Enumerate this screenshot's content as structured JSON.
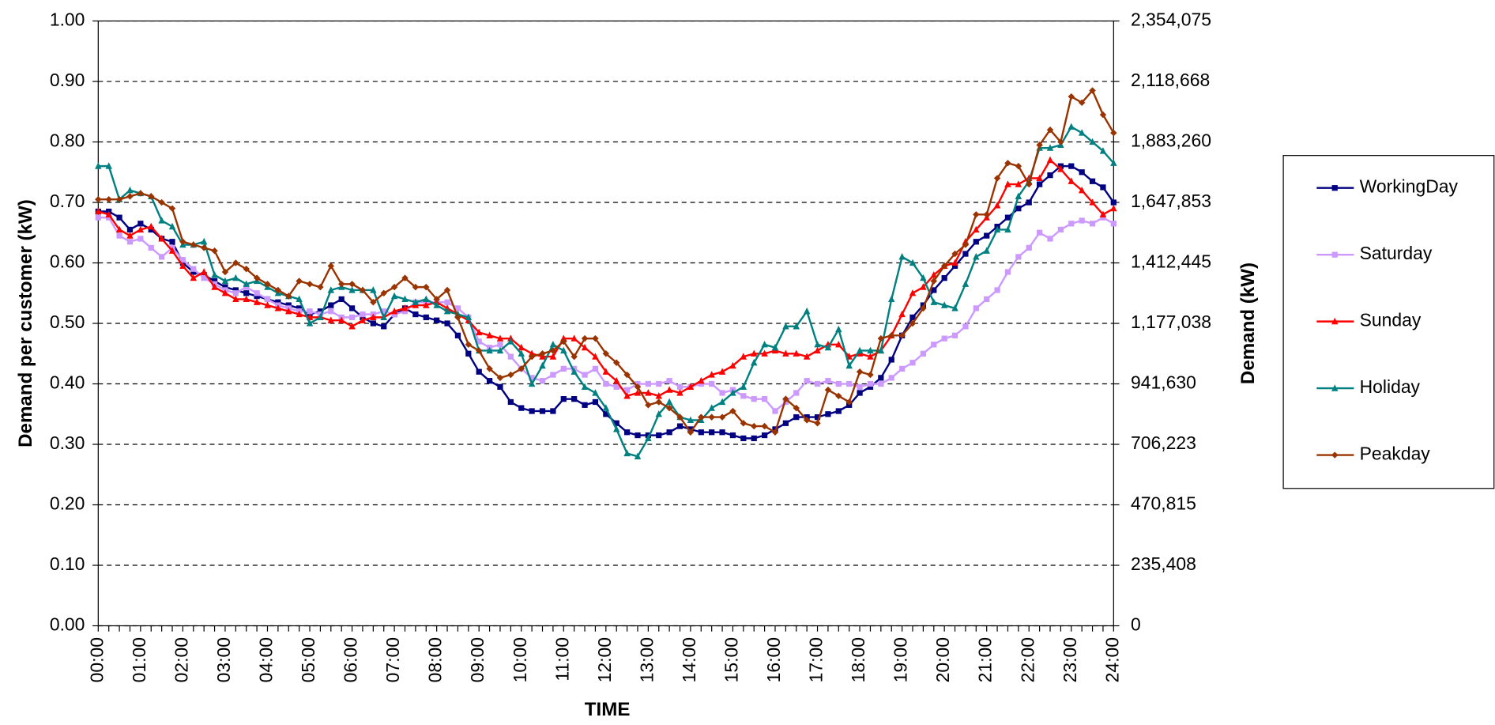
{
  "chart_data": {
    "type": "line",
    "xlabel": "TIME",
    "ylabel": "Demand per customer (kW)",
    "y2label": "Demand (kW)",
    "categories": [
      "00:00",
      null,
      null,
      null,
      "01:00",
      null,
      null,
      null,
      "02:00",
      null,
      null,
      null,
      "03:00",
      null,
      null,
      null,
      "04:00",
      null,
      null,
      null,
      "05:00",
      null,
      null,
      null,
      "06:00",
      null,
      null,
      null,
      "07:00",
      null,
      null,
      null,
      "08:00",
      null,
      null,
      null,
      "09:00",
      null,
      null,
      null,
      "10:00",
      null,
      null,
      null,
      "11:00",
      null,
      null,
      null,
      "12:00",
      null,
      null,
      null,
      "13:00",
      null,
      null,
      null,
      "14:00",
      null,
      null,
      null,
      "15:00",
      null,
      null,
      null,
      "16:00",
      null,
      null,
      null,
      "17:00",
      null,
      null,
      null,
      "18:00",
      null,
      null,
      null,
      "19:00",
      null,
      null,
      null,
      "20:00",
      null,
      null,
      null,
      "21:00",
      null,
      null,
      null,
      "22:00",
      null,
      null,
      null,
      "23:00",
      null,
      null,
      null,
      "24:00"
    ],
    "ylim": [
      0,
      1
    ],
    "yticks": [
      {
        "value": 0,
        "label": "0.00"
      },
      {
        "value": 0.1,
        "label": "0.10"
      },
      {
        "value": 0.2,
        "label": "0.20"
      },
      {
        "value": 0.3,
        "label": "0.30"
      },
      {
        "value": 0.4,
        "label": "0.40"
      },
      {
        "value": 0.5,
        "label": "0.50"
      },
      {
        "value": 0.6,
        "label": "0.60"
      },
      {
        "value": 0.7,
        "label": "0.70"
      },
      {
        "value": 0.8,
        "label": "0.80"
      },
      {
        "value": 0.9,
        "label": "0.90"
      },
      {
        "value": 1,
        "label": "1.00"
      }
    ],
    "y2lim": [
      0,
      2354075
    ],
    "y2ticks": [
      0,
      {
        "value": 235408,
        "label": "235,408"
      },
      {
        "value": 470815,
        "label": "470,815"
      },
      {
        "value": 706223,
        "label": "706,223"
      },
      {
        "value": 941630,
        "label": "941,630"
      },
      {
        "value": 1177038,
        "label": "1,177,038"
      },
      {
        "value": 1412445,
        "label": "1,412,445"
      },
      {
        "value": 1647853,
        "label": "1,647,853"
      },
      {
        "value": 1883260,
        "label": "1,883,260"
      },
      {
        "value": 2118668,
        "label": "2,118,668"
      },
      {
        "value": 2354075,
        "label": "2,354,075"
      }
    ],
    "grid": true,
    "legend": "right",
    "series": [
      {
        "name": "WorkingDay",
        "color": "#000080",
        "marker": "square",
        "values": [
          0.685,
          0.685,
          0.675,
          0.655,
          0.665,
          0.655,
          0.64,
          0.635,
          0.6,
          0.585,
          0.58,
          0.57,
          0.56,
          0.555,
          0.55,
          0.545,
          0.54,
          0.535,
          0.53,
          0.525,
          0.515,
          0.52,
          0.53,
          0.54,
          0.525,
          0.51,
          0.5,
          0.495,
          0.515,
          0.525,
          0.515,
          0.51,
          0.505,
          0.5,
          0.48,
          0.45,
          0.42,
          0.405,
          0.395,
          0.37,
          0.36,
          0.355,
          0.355,
          0.355,
          0.375,
          0.375,
          0.365,
          0.37,
          0.35,
          0.335,
          0.32,
          0.315,
          0.315,
          0.315,
          0.32,
          0.33,
          0.325,
          0.32,
          0.32,
          0.32,
          0.315,
          0.31,
          0.31,
          0.315,
          0.325,
          0.335,
          0.345,
          0.345,
          0.345,
          0.35,
          0.355,
          0.365,
          0.385,
          0.395,
          0.41,
          0.44,
          0.48,
          0.51,
          0.53,
          0.555,
          0.575,
          0.595,
          0.615,
          0.635,
          0.645,
          0.66,
          0.675,
          0.69,
          0.7,
          0.73,
          0.745,
          0.76,
          0.76,
          0.75,
          0.735,
          0.725,
          0.7
        ]
      },
      {
        "name": "Saturday",
        "color": "#cc99ff",
        "marker": "square",
        "values": [
          0.675,
          0.675,
          0.645,
          0.635,
          0.64,
          0.625,
          0.61,
          0.625,
          0.605,
          0.59,
          0.575,
          0.565,
          0.555,
          0.55,
          0.56,
          0.55,
          0.54,
          0.53,
          0.525,
          0.52,
          0.52,
          0.515,
          0.52,
          0.51,
          0.51,
          0.515,
          0.515,
          0.52,
          0.515,
          0.52,
          0.535,
          0.535,
          0.535,
          0.535,
          0.525,
          0.51,
          0.47,
          0.46,
          0.465,
          0.445,
          0.425,
          0.41,
          0.405,
          0.415,
          0.425,
          0.425,
          0.415,
          0.425,
          0.4,
          0.395,
          0.39,
          0.4,
          0.4,
          0.4,
          0.405,
          0.395,
          0.395,
          0.4,
          0.4,
          0.385,
          0.39,
          0.38,
          0.375,
          0.375,
          0.355,
          0.37,
          0.385,
          0.405,
          0.4,
          0.405,
          0.4,
          0.4,
          0.395,
          0.4,
          0.4,
          0.41,
          0.425,
          0.435,
          0.45,
          0.465,
          0.475,
          0.48,
          0.495,
          0.525,
          0.54,
          0.555,
          0.585,
          0.61,
          0.625,
          0.65,
          0.64,
          0.655,
          0.665,
          0.67,
          0.665,
          0.675,
          0.665
        ]
      },
      {
        "name": "Sunday",
        "color": "#ff0000",
        "marker": "triangle",
        "values": [
          0.685,
          0.68,
          0.655,
          0.645,
          0.655,
          0.66,
          0.64,
          0.62,
          0.595,
          0.575,
          0.585,
          0.56,
          0.55,
          0.54,
          0.54,
          0.535,
          0.53,
          0.525,
          0.52,
          0.515,
          0.51,
          0.51,
          0.505,
          0.505,
          0.495,
          0.505,
          0.51,
          0.51,
          0.52,
          0.525,
          0.53,
          0.53,
          0.535,
          0.525,
          0.515,
          0.505,
          0.485,
          0.48,
          0.475,
          0.475,
          0.46,
          0.45,
          0.445,
          0.445,
          0.475,
          0.475,
          0.46,
          0.445,
          0.42,
          0.405,
          0.38,
          0.385,
          0.385,
          0.38,
          0.39,
          0.385,
          0.395,
          0.405,
          0.415,
          0.42,
          0.43,
          0.445,
          0.45,
          0.45,
          0.455,
          0.45,
          0.45,
          0.445,
          0.455,
          0.465,
          0.465,
          0.445,
          0.45,
          0.445,
          0.455,
          0.48,
          0.515,
          0.55,
          0.56,
          0.58,
          0.595,
          0.6,
          0.635,
          0.655,
          0.675,
          0.695,
          0.73,
          0.73,
          0.74,
          0.74,
          0.77,
          0.755,
          0.735,
          0.72,
          0.7,
          0.68,
          0.69
        ]
      },
      {
        "name": "Holiday",
        "color": "#008080",
        "marker": "triangle",
        "values": [
          0.76,
          0.76,
          0.705,
          0.72,
          0.715,
          0.71,
          0.67,
          0.66,
          0.63,
          0.63,
          0.635,
          0.58,
          0.57,
          0.575,
          0.565,
          0.57,
          0.56,
          0.55,
          0.545,
          0.54,
          0.5,
          0.51,
          0.555,
          0.56,
          0.555,
          0.555,
          0.555,
          0.51,
          0.545,
          0.54,
          0.535,
          0.54,
          0.53,
          0.52,
          0.515,
          0.51,
          0.455,
          0.455,
          0.455,
          0.47,
          0.45,
          0.4,
          0.43,
          0.465,
          0.455,
          0.42,
          0.395,
          0.385,
          0.36,
          0.325,
          0.285,
          0.28,
          0.31,
          0.35,
          0.37,
          0.345,
          0.34,
          0.34,
          0.36,
          0.37,
          0.385,
          0.395,
          0.435,
          0.465,
          0.46,
          0.495,
          0.495,
          0.52,
          0.465,
          0.46,
          0.49,
          0.43,
          0.455,
          0.455,
          0.455,
          0.54,
          0.61,
          0.6,
          0.575,
          0.535,
          0.53,
          0.525,
          0.565,
          0.61,
          0.62,
          0.655,
          0.655,
          0.71,
          0.735,
          0.79,
          0.79,
          0.795,
          0.825,
          0.815,
          0.8,
          0.785,
          0.765
        ]
      },
      {
        "name": "Peakday",
        "color": "#993300",
        "marker": "diamond",
        "values": [
          0.705,
          0.705,
          0.705,
          0.71,
          0.715,
          0.71,
          0.7,
          0.69,
          0.635,
          0.63,
          0.625,
          0.62,
          0.585,
          0.6,
          0.59,
          0.575,
          0.565,
          0.555,
          0.545,
          0.57,
          0.565,
          0.56,
          0.595,
          0.565,
          0.565,
          0.555,
          0.535,
          0.55,
          0.56,
          0.575,
          0.56,
          0.56,
          0.54,
          0.555,
          0.51,
          0.465,
          0.455,
          0.425,
          0.41,
          0.415,
          0.425,
          0.445,
          0.45,
          0.455,
          0.47,
          0.445,
          0.475,
          0.475,
          0.45,
          0.435,
          0.415,
          0.395,
          0.365,
          0.37,
          0.36,
          0.345,
          0.32,
          0.345,
          0.345,
          0.345,
          0.355,
          0.335,
          0.33,
          0.33,
          0.32,
          0.375,
          0.36,
          0.34,
          0.335,
          0.39,
          0.38,
          0.37,
          0.42,
          0.415,
          0.475,
          0.48,
          0.48,
          0.5,
          0.525,
          0.57,
          0.595,
          0.615,
          0.63,
          0.68,
          0.68,
          0.74,
          0.765,
          0.76,
          0.73,
          0.795,
          0.82,
          0.8,
          0.875,
          0.865,
          0.885,
          0.845,
          0.815
        ]
      }
    ]
  }
}
